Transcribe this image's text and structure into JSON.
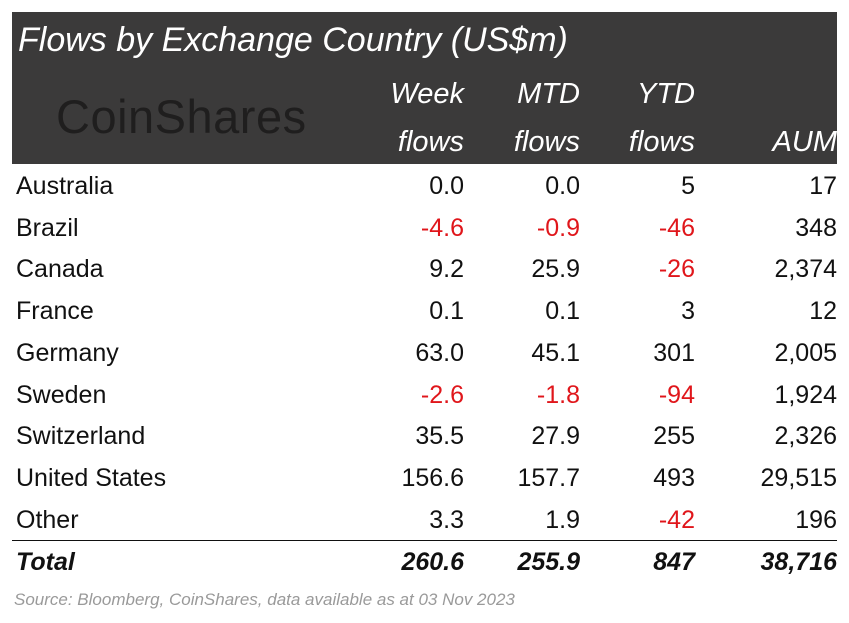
{
  "chart_data": {
    "type": "table",
    "title": "Flows by Exchange Country (US$m)",
    "logo_text": "CoinShares",
    "columns": [
      {
        "line1": "Week",
        "line2": "flows"
      },
      {
        "line1": "MTD",
        "line2": "flows"
      },
      {
        "line1": "YTD",
        "line2": "flows"
      },
      {
        "line1": "",
        "line2": "AUM"
      }
    ],
    "rows": [
      {
        "name": "Australia",
        "cells": [
          {
            "text": "0.0",
            "neg": false
          },
          {
            "text": "0.0",
            "neg": false
          },
          {
            "text": "5",
            "neg": false
          },
          {
            "text": "17",
            "neg": false
          }
        ]
      },
      {
        "name": "Brazil",
        "cells": [
          {
            "text": "-4.6",
            "neg": true
          },
          {
            "text": "-0.9",
            "neg": true
          },
          {
            "text": "-46",
            "neg": true
          },
          {
            "text": "348",
            "neg": false
          }
        ]
      },
      {
        "name": "Canada",
        "cells": [
          {
            "text": "9.2",
            "neg": false
          },
          {
            "text": "25.9",
            "neg": false
          },
          {
            "text": "-26",
            "neg": true
          },
          {
            "text": "2,374",
            "neg": false
          }
        ]
      },
      {
        "name": "France",
        "cells": [
          {
            "text": "0.1",
            "neg": false
          },
          {
            "text": "0.1",
            "neg": false
          },
          {
            "text": "3",
            "neg": false
          },
          {
            "text": "12",
            "neg": false
          }
        ]
      },
      {
        "name": "Germany",
        "cells": [
          {
            "text": "63.0",
            "neg": false
          },
          {
            "text": "45.1",
            "neg": false
          },
          {
            "text": "301",
            "neg": false
          },
          {
            "text": "2,005",
            "neg": false
          }
        ]
      },
      {
        "name": "Sweden",
        "cells": [
          {
            "text": "-2.6",
            "neg": true
          },
          {
            "text": "-1.8",
            "neg": true
          },
          {
            "text": "-94",
            "neg": true
          },
          {
            "text": "1,924",
            "neg": false
          }
        ]
      },
      {
        "name": "Switzerland",
        "cells": [
          {
            "text": "35.5",
            "neg": false
          },
          {
            "text": "27.9",
            "neg": false
          },
          {
            "text": "255",
            "neg": false
          },
          {
            "text": "2,326",
            "neg": false
          }
        ]
      },
      {
        "name": "United States",
        "cells": [
          {
            "text": "156.6",
            "neg": false
          },
          {
            "text": "157.7",
            "neg": false
          },
          {
            "text": "493",
            "neg": false
          },
          {
            "text": "29,515",
            "neg": false
          }
        ]
      },
      {
        "name": "Other",
        "cells": [
          {
            "text": "3.3",
            "neg": false
          },
          {
            "text": "1.9",
            "neg": false
          },
          {
            "text": "-42",
            "neg": true
          },
          {
            "text": "196",
            "neg": false
          }
        ]
      }
    ],
    "total": {
      "name": "Total",
      "cells": [
        {
          "text": "260.6",
          "neg": false
        },
        {
          "text": "255.9",
          "neg": false
        },
        {
          "text": "847",
          "neg": false
        },
        {
          "text": "38,716",
          "neg": false
        }
      ]
    },
    "source": "Source: Bloomberg, CoinShares, data available as at 03 Nov 2023",
    "colors": {
      "header_bg": "#3b3a3a",
      "negative": "#e0161b",
      "source": "#9a9a9a"
    }
  }
}
